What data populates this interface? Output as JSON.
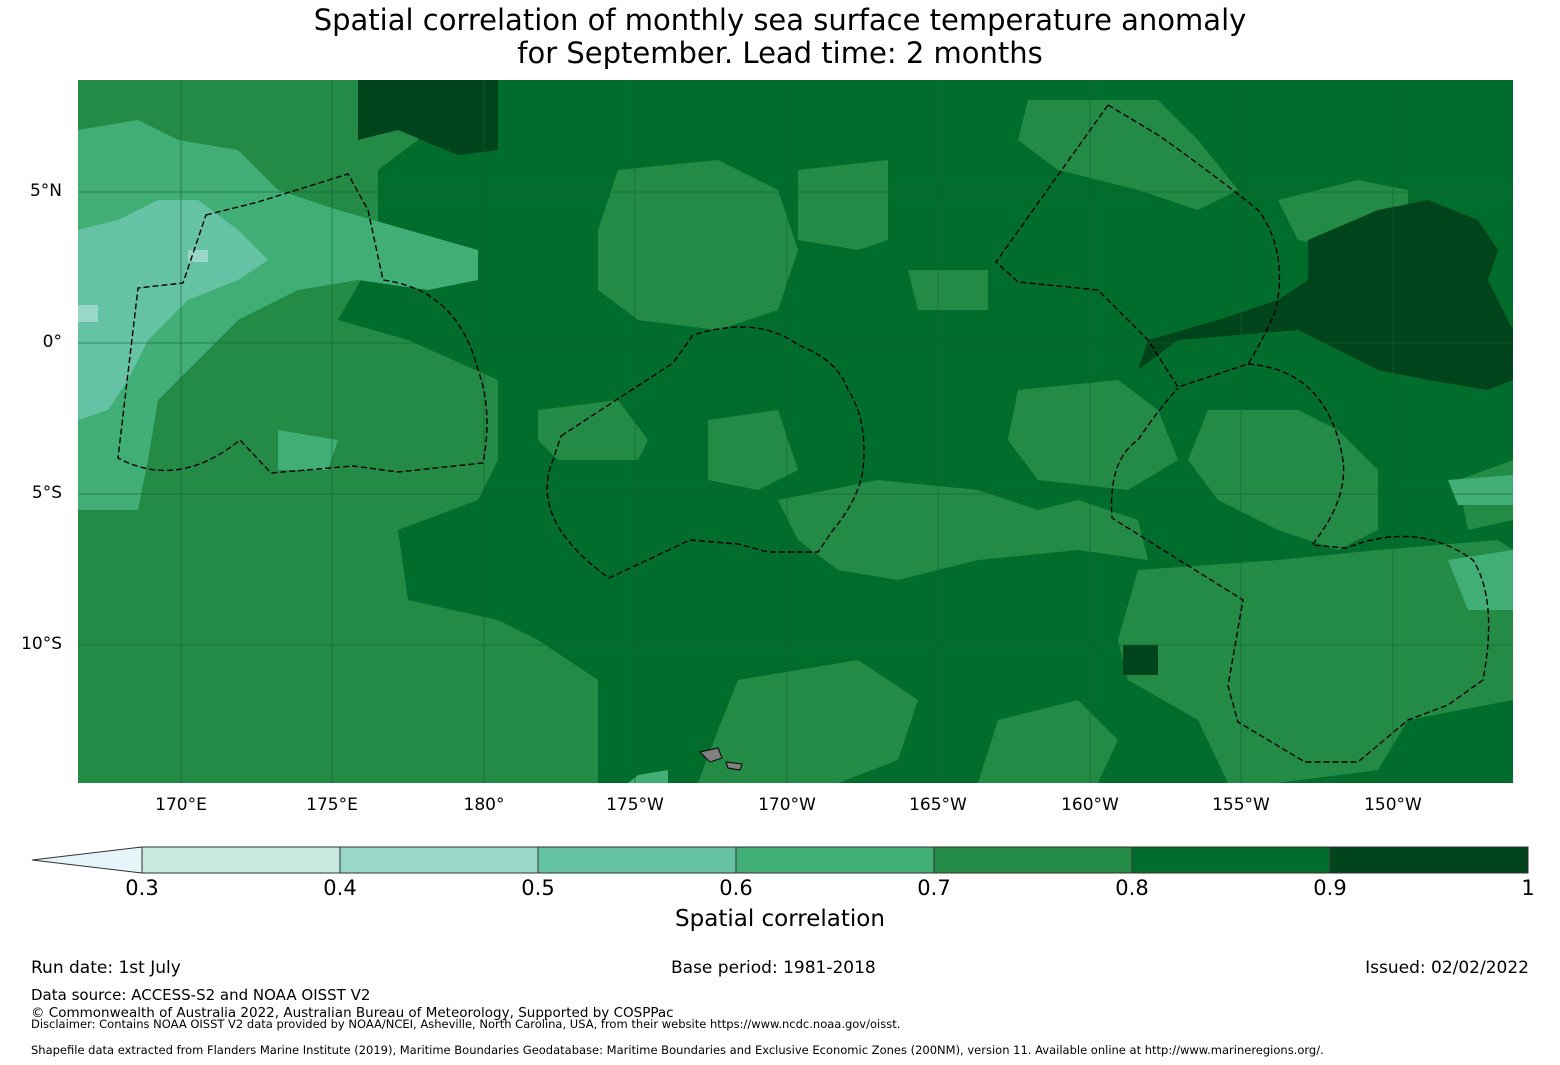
{
  "title": {
    "line1": "Spatial correlation of monthly sea surface temperature anomaly",
    "line2": "for September. Lead time: 2 months"
  },
  "axes": {
    "lat_labels": [
      "5°N",
      "0°",
      "5°S",
      "10°S"
    ],
    "lon_labels": [
      "170°E",
      "175°E",
      "180°",
      "175°W",
      "170°W",
      "165°W",
      "160°W",
      "155°W",
      "150°W"
    ]
  },
  "map_colors": {
    "c_0_3": "#c7e9e0",
    "c_0_4": "#99d8c9",
    "c_0_5": "#66c2a4",
    "c_0_6": "#41ae76",
    "c_0_7": "#238b45",
    "c_0_8": "#006d2c",
    "c_0_9": "#00441b",
    "land": "#808080",
    "boundary": "#000000"
  },
  "colorbar": {
    "label": "Spatial correlation",
    "ticks": [
      "0.3",
      "0.4",
      "0.5",
      "0.6",
      "0.7",
      "0.8",
      "0.9",
      "1"
    ],
    "extend_color": "#e5f5f9",
    "colors": [
      "#c7e9e0",
      "#99d8c9",
      "#66c2a4",
      "#41ae76",
      "#238b45",
      "#006d2c",
      "#00441b"
    ]
  },
  "footer": {
    "run_date": "Run date: 1st July",
    "base_period": "Base period: 1981-2018",
    "issued": "Issued: 02/02/2022",
    "data_source": "Data source: ACCESS-S2 and NOAA OISST V2",
    "copyright": "© Commonwealth of Australia 2022, Australian Bureau of Meteorology, Supported by COSPPac",
    "disclaimer": "Disclaimer: Contains NOAA OISST V2 data provided by NOAA/NCEI, Asheville, North Carolina, USA, from their website https://www.ncdc.noaa.gov/oisst.",
    "shapefile": "Shapefile data extracted from Flanders Marine Institute (2019), Maritime Boundaries Geodatabase: Maritime Boundaries and Exclusive Economic Zones (200NM), version 11. Available online at http://www.marineregions.org/."
  }
}
